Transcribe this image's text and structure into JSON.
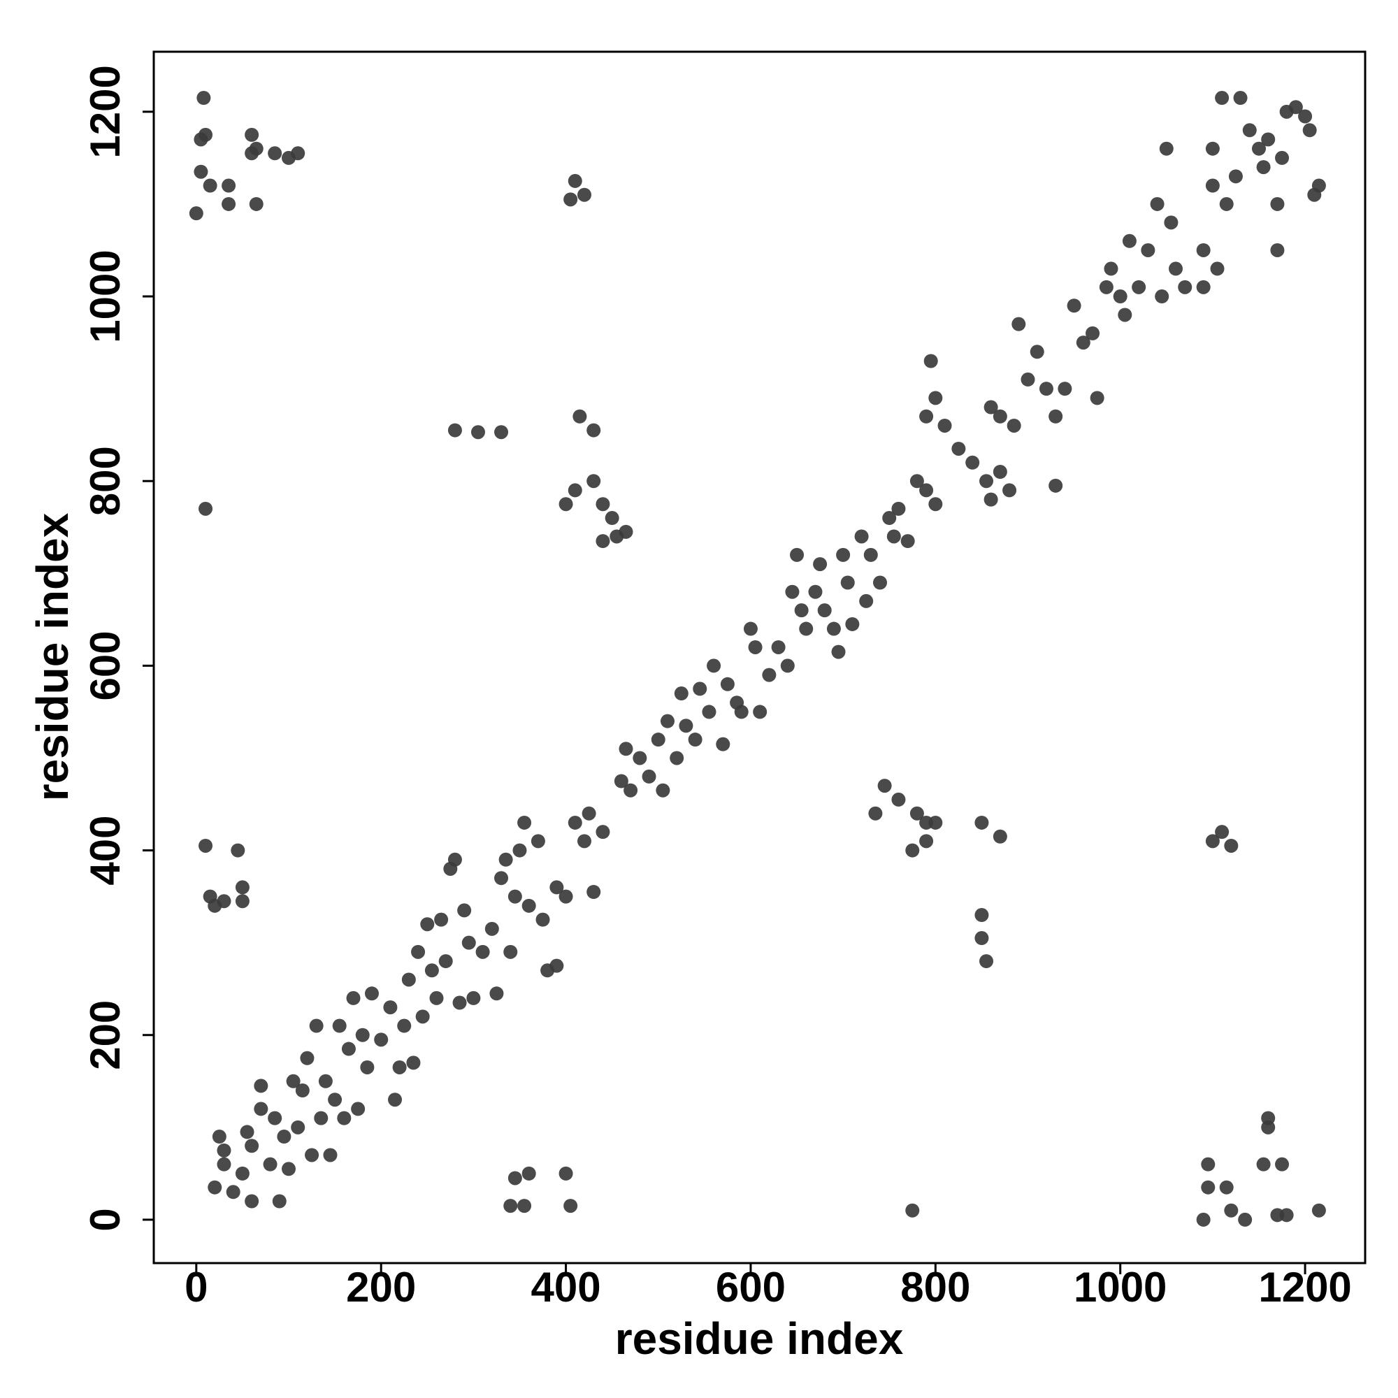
{
  "chart_data": {
    "type": "scatter",
    "x_label": "residue index",
    "y_label": "residue index",
    "xlim": [
      -46,
      1265
    ],
    "ylim": [
      -47,
      1265
    ],
    "xticks": [
      0,
      200,
      400,
      600,
      800,
      1000,
      1200
    ],
    "yticks": [
      0,
      200,
      400,
      600,
      800,
      1000,
      1200
    ],
    "color": "#3b3b3b",
    "x": [
      5,
      10,
      8,
      0,
      5,
      15,
      35,
      35,
      60,
      60,
      65,
      85,
      100,
      110,
      65,
      10,
      10,
      45,
      15,
      20,
      30,
      50,
      50,
      280,
      305,
      330,
      410,
      420,
      405,
      415,
      430,
      400,
      410,
      430,
      440,
      450,
      465,
      440,
      455,
      340,
      345,
      360,
      355,
      400,
      405,
      775,
      735,
      745,
      760,
      780,
      790,
      775,
      790,
      800,
      850,
      870,
      850,
      850,
      855,
      1100,
      1110,
      1120,
      1090,
      1095,
      1095,
      1115,
      1120,
      1135,
      1155,
      1160,
      1160,
      1175,
      1170,
      1180,
      1215,
      930,
      20,
      30,
      30,
      25,
      40,
      50,
      55,
      60,
      60,
      70,
      70,
      80,
      85,
      90,
      95,
      100,
      105,
      110,
      115,
      120,
      125,
      130,
      135,
      140,
      145,
      150,
      155,
      160,
      165,
      170,
      175,
      180,
      185,
      190,
      200,
      210,
      215,
      220,
      225,
      230,
      235,
      240,
      245,
      250,
      255,
      260,
      265,
      270,
      275,
      280,
      285,
      290,
      295,
      300,
      310,
      320,
      325,
      330,
      335,
      340,
      345,
      350,
      355,
      360,
      370,
      375,
      380,
      390,
      390,
      400,
      410,
      420,
      425,
      430,
      440,
      460,
      465,
      470,
      480,
      490,
      500,
      505,
      510,
      520,
      525,
      530,
      540,
      545,
      555,
      560,
      570,
      575,
      585,
      590,
      600,
      605,
      610,
      620,
      630,
      640,
      645,
      650,
      655,
      660,
      670,
      675,
      680,
      690,
      695,
      700,
      705,
      710,
      720,
      725,
      730,
      740,
      750,
      755,
      760,
      770,
      780,
      790,
      800,
      795,
      790,
      800,
      810,
      825,
      840,
      855,
      860,
      870,
      880,
      860,
      870,
      885,
      890,
      900,
      910,
      920,
      930,
      940,
      950,
      960,
      970,
      975,
      985,
      990,
      1000,
      1005,
      1010,
      1020,
      1030,
      1040,
      1045,
      1050,
      1055,
      1060,
      1070,
      1090,
      1090,
      1100,
      1100,
      1105,
      1110,
      1115,
      1125,
      1130,
      1140,
      1150,
      1155,
      1160,
      1170,
      1175,
      1180,
      1190,
      1200,
      1205,
      1210,
      1215,
      1170
    ],
    "y": [
      1170,
      1175,
      1215,
      1090,
      1135,
      1120,
      1120,
      1100,
      1175,
      1155,
      1160,
      1155,
      1150,
      1155,
      1100,
      770,
      405,
      400,
      350,
      340,
      345,
      345,
      360,
      855,
      853,
      853,
      1125,
      1110,
      1105,
      870,
      855,
      775,
      790,
      800,
      775,
      760,
      745,
      735,
      740,
      15,
      45,
      50,
      15,
      50,
      15,
      10,
      440,
      470,
      455,
      440,
      430,
      400,
      410,
      430,
      430,
      415,
      330,
      305,
      280,
      410,
      420,
      405,
      0,
      35,
      60,
      35,
      10,
      0,
      60,
      100,
      110,
      60,
      5,
      5,
      10,
      795,
      35,
      60,
      75,
      90,
      30,
      50,
      95,
      20,
      80,
      120,
      145,
      60,
      110,
      20,
      90,
      55,
      150,
      100,
      140,
      175,
      70,
      210,
      110,
      150,
      70,
      130,
      210,
      110,
      185,
      240,
      120,
      200,
      165,
      245,
      195,
      230,
      130,
      165,
      210,
      260,
      170,
      290,
      220,
      320,
      270,
      240,
      325,
      280,
      380,
      390,
      235,
      335,
      300,
      240,
      290,
      315,
      245,
      370,
      390,
      290,
      350,
      400,
      430,
      340,
      410,
      325,
      270,
      275,
      360,
      350,
      430,
      410,
      440,
      355,
      420,
      475,
      510,
      465,
      500,
      480,
      520,
      465,
      540,
      500,
      570,
      535,
      520,
      575,
      550,
      600,
      515,
      580,
      560,
      550,
      640,
      620,
      550,
      590,
      620,
      600,
      680,
      720,
      660,
      640,
      680,
      710,
      660,
      640,
      615,
      720,
      690,
      645,
      740,
      670,
      720,
      690,
      760,
      740,
      770,
      735,
      800,
      790,
      775,
      930,
      870,
      890,
      860,
      835,
      820,
      800,
      780,
      810,
      790,
      880,
      870,
      860,
      970,
      910,
      940,
      900,
      870,
      900,
      990,
      950,
      960,
      890,
      1010,
      1030,
      1000,
      980,
      1060,
      1010,
      1050,
      1100,
      1000,
      1160,
      1080,
      1030,
      1010,
      1050,
      1010,
      1160,
      1120,
      1030,
      1215,
      1100,
      1130,
      1215,
      1180,
      1160,
      1140,
      1170,
      1100,
      1150,
      1200,
      1205,
      1195,
      1180,
      1110,
      1120,
      1050
    ]
  }
}
